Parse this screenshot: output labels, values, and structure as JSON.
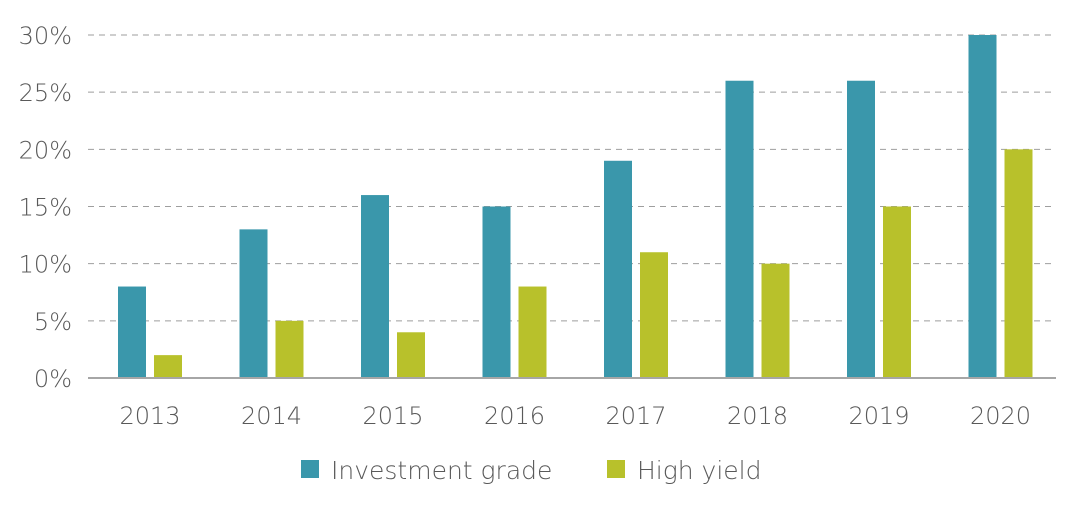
{
  "chart_data": {
    "type": "bar",
    "categories": [
      "2013",
      "2014",
      "2015",
      "2016",
      "2017",
      "2018",
      "2019",
      "2020"
    ],
    "series": [
      {
        "name": "Investment grade",
        "color": "#3a97ab",
        "values": [
          8,
          13,
          16,
          15,
          19,
          26,
          26,
          30
        ]
      },
      {
        "name": "High yield",
        "color": "#b8c12b",
        "values": [
          2,
          5,
          4,
          8,
          11,
          10,
          15,
          20
        ]
      }
    ],
    "title": "",
    "xlabel": "",
    "ylabel": "",
    "ylim": [
      0,
      30
    ],
    "yticks": [
      0,
      5,
      10,
      15,
      20,
      25,
      30
    ],
    "y_tick_format": "percent",
    "grid": "horizontal-dashed",
    "legend_position": "bottom",
    "axis_color": "#a6a6a6",
    "grid_color": "#9e9e9e",
    "text_color": "#595959"
  }
}
